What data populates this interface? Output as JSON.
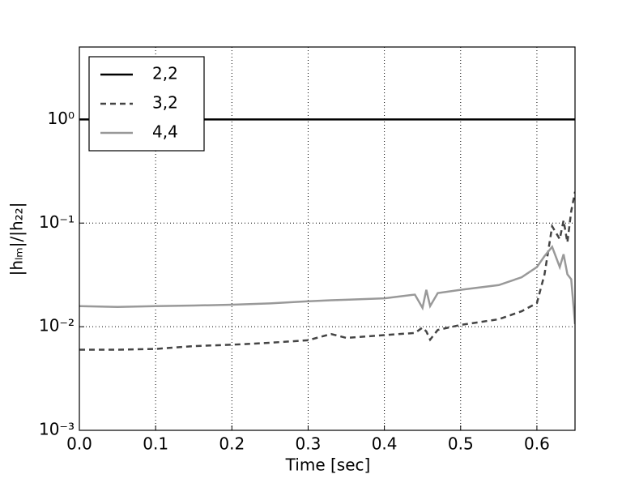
{
  "chart_data": {
    "type": "line",
    "xlabel": "Time [sec]",
    "ylabel": "|hₗₘ|/|h₂₂|",
    "x": [
      0,
      0.05,
      0.1,
      0.15,
      0.2,
      0.25,
      0.3,
      0.33,
      0.35,
      0.4,
      0.44,
      0.45,
      0.455,
      0.46,
      0.47,
      0.5,
      0.55,
      0.58,
      0.6,
      0.61,
      0.62,
      0.63,
      0.635,
      0.64,
      0.645,
      0.65
    ],
    "series": [
      {
        "name": "2,2",
        "color": "#000000",
        "linestyle": "solid",
        "values": [
          1,
          1,
          1,
          1,
          1,
          1,
          1,
          1,
          1,
          1,
          1,
          1,
          1,
          1,
          1,
          1,
          1,
          1,
          1,
          1,
          1,
          1,
          1,
          1,
          1,
          1
        ]
      },
      {
        "name": "3,2",
        "color": "#444444",
        "linestyle": "dashed",
        "values": [
          0.006,
          0.006,
          0.0061,
          0.0065,
          0.0067,
          0.007,
          0.0074,
          0.0085,
          0.0078,
          0.0083,
          0.0087,
          0.0098,
          0.009,
          0.0075,
          0.0093,
          0.0104,
          0.0118,
          0.0141,
          0.0169,
          0.032,
          0.093,
          0.07,
          0.106,
          0.065,
          0.13,
          0.2
        ]
      },
      {
        "name": "4,4",
        "color": "#999999",
        "linestyle": "solid",
        "values": [
          0.0158,
          0.0155,
          0.0158,
          0.016,
          0.0163,
          0.0168,
          0.0176,
          0.018,
          0.0182,
          0.0188,
          0.0204,
          0.0152,
          0.0227,
          0.0158,
          0.0211,
          0.0227,
          0.0252,
          0.03,
          0.0376,
          0.048,
          0.059,
          0.0376,
          0.05,
          0.032,
          0.0287,
          0.0106
        ]
      }
    ],
    "xlim": [
      0,
      0.65
    ],
    "xticks": [
      {
        "value": 0,
        "label": "0.0"
      },
      0.1,
      0.2,
      0.3,
      0.4,
      0.5,
      0.6
    ],
    "ylim": [
      0.001,
      5
    ],
    "yticks": [
      {
        "value": 0.001,
        "label": "10⁻³"
      },
      {
        "value": 0.01,
        "label": "10⁻²"
      },
      {
        "value": 0.1,
        "label": "10⁻¹"
      },
      {
        "value": 1,
        "label": "10⁰"
      }
    ],
    "ylog": true,
    "grid": true,
    "legend": "upper-left"
  }
}
